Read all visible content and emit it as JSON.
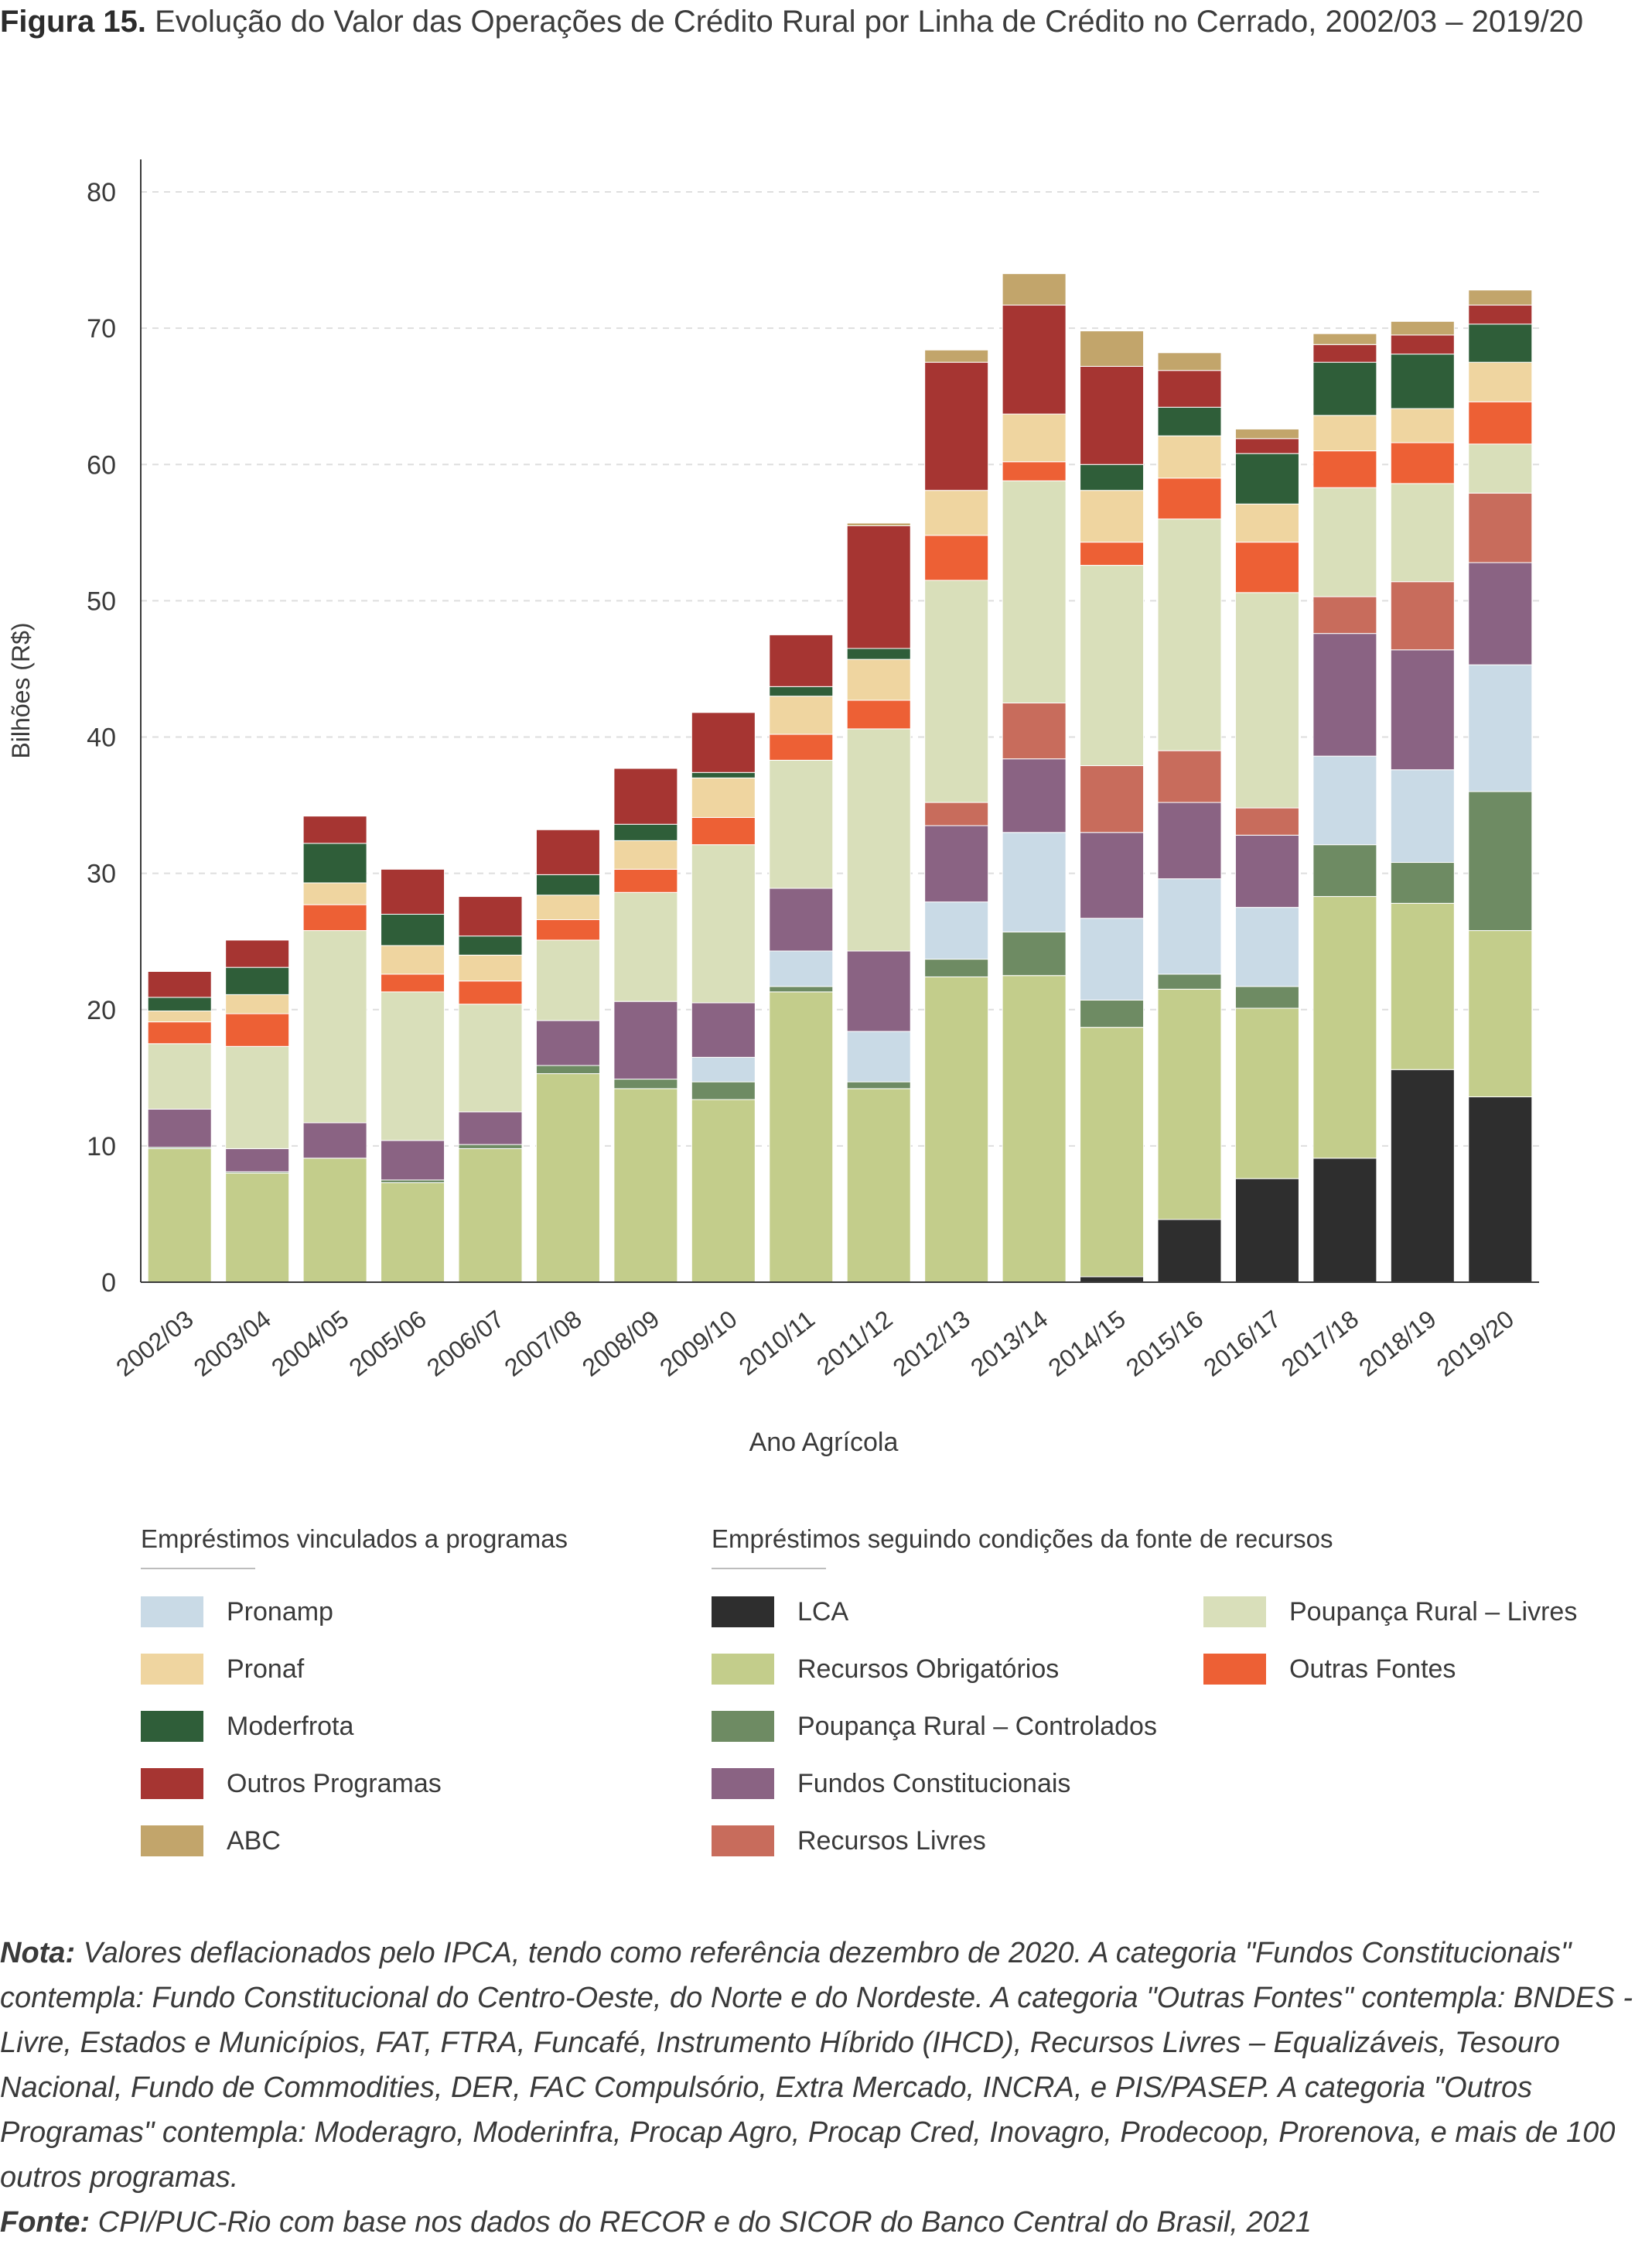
{
  "title": {
    "bold": "Figura 15.",
    "text": " Evolução do Valor das Operações de Crédito Rural por Linha de Crédito no Cerrado, 2002/03 – 2019/20"
  },
  "chart_data": {
    "type": "bar",
    "stacked": true,
    "ylabel": "Bilhões (R$)",
    "xlabel": "Ano Agrícola",
    "ylim": [
      0,
      80
    ],
    "yticks": [
      0,
      10,
      20,
      30,
      40,
      50,
      60,
      70,
      80
    ],
    "grid": "horizontal dashed",
    "categories": [
      "2002/03",
      "2003/04",
      "2004/05",
      "2005/06",
      "2006/07",
      "2007/08",
      "2008/09",
      "2009/10",
      "2010/11",
      "2011/12",
      "2012/13",
      "2013/14",
      "2014/15",
      "2015/16",
      "2016/17",
      "2017/18",
      "2018/19",
      "2019/20"
    ],
    "series": [
      {
        "name": "LCA",
        "color": "#2e2e2e",
        "values": [
          0,
          0,
          0,
          0,
          0,
          0,
          0,
          0,
          0,
          0,
          0,
          0,
          0.4,
          4.6,
          7.6,
          9.1,
          15.6,
          13.6
        ]
      },
      {
        "name": "Recursos Obrigatórios",
        "color": "#c3cd8b",
        "values": [
          9.8,
          8.0,
          9.1,
          7.3,
          9.8,
          15.3,
          14.2,
          13.4,
          21.3,
          14.2,
          22.4,
          22.5,
          18.3,
          16.9,
          12.5,
          19.2,
          12.2,
          12.2
        ]
      },
      {
        "name": "Poupança Rural – Controlados",
        "color": "#6e8b63",
        "values": [
          0.1,
          0.1,
          0,
          0.2,
          0.3,
          0.6,
          0.7,
          1.3,
          0.4,
          0.5,
          1.3,
          3.2,
          2.0,
          1.1,
          1.6,
          3.8,
          3.0,
          10.2
        ]
      },
      {
        "name": "Pronamp",
        "color": "#c9dae6",
        "values": [
          0,
          0,
          0,
          0,
          0,
          0,
          0,
          1.8,
          2.6,
          3.7,
          4.2,
          7.3,
          6.0,
          7.0,
          5.8,
          6.5,
          6.8,
          9.3
        ]
      },
      {
        "name": "Fundos Constitucionais",
        "color": "#8a6383",
        "values": [
          2.8,
          1.7,
          2.6,
          2.9,
          2.4,
          3.3,
          5.7,
          4.0,
          4.6,
          5.9,
          5.6,
          5.4,
          6.3,
          5.6,
          5.3,
          9.0,
          8.8,
          7.5
        ]
      },
      {
        "name": "Recursos Livres",
        "color": "#c86c5c",
        "values": [
          0,
          0,
          0,
          0,
          0,
          0,
          0,
          0,
          0,
          0,
          1.7,
          4.1,
          4.9,
          3.8,
          2.0,
          2.7,
          5.0,
          5.1
        ]
      },
      {
        "name": "Poupança Rural – Livres",
        "color": "#d9dfba",
        "values": [
          4.8,
          7.5,
          14.1,
          10.9,
          7.9,
          5.9,
          8.0,
          11.6,
          9.4,
          16.3,
          16.3,
          16.3,
          14.7,
          17.0,
          15.8,
          8.0,
          7.2,
          3.6
        ]
      },
      {
        "name": "Outras Fontes",
        "color": "#ed6035",
        "values": [
          1.6,
          2.4,
          1.9,
          1.3,
          1.7,
          1.5,
          1.7,
          2.0,
          1.9,
          2.1,
          3.3,
          1.4,
          1.7,
          3.0,
          3.7,
          2.7,
          3.0,
          3.1
        ]
      },
      {
        "name": "Pronaf",
        "color": "#efd5a0",
        "values": [
          0.8,
          1.4,
          1.6,
          2.1,
          1.9,
          1.8,
          2.1,
          2.9,
          2.8,
          3.0,
          3.3,
          3.5,
          3.8,
          3.1,
          2.8,
          2.6,
          2.5,
          2.9
        ]
      },
      {
        "name": "Moderfrota",
        "color": "#2f5e39",
        "values": [
          1.0,
          2.0,
          2.9,
          2.3,
          1.4,
          1.5,
          1.2,
          0.4,
          0.7,
          0.8,
          0,
          0,
          1.9,
          2.1,
          3.7,
          3.9,
          4.0,
          2.8
        ]
      },
      {
        "name": "Outros Programas",
        "color": "#a63532",
        "values": [
          1.9,
          2.0,
          2.0,
          3.3,
          2.9,
          3.3,
          4.1,
          4.4,
          3.8,
          9.0,
          9.4,
          8.0,
          7.2,
          2.7,
          1.1,
          1.3,
          1.4,
          1.4
        ]
      },
      {
        "name": "ABC",
        "color": "#c2a56b",
        "values": [
          0,
          0,
          0,
          0,
          0,
          0,
          0,
          0,
          0,
          0.2,
          0.9,
          2.3,
          2.6,
          1.3,
          0.7,
          0.8,
          1.0,
          1.1
        ]
      }
    ]
  },
  "legend": {
    "group1_title": "Empréstimos vinculados a programas",
    "group2_title": "Empréstimos seguindo condições da fonte de recursos",
    "group1": [
      {
        "label": "Pronamp",
        "color": "#c9dae6"
      },
      {
        "label": "Pronaf",
        "color": "#efd5a0"
      },
      {
        "label": "Moderfrota",
        "color": "#2f5e39"
      },
      {
        "label": "Outros Programas",
        "color": "#a63532"
      },
      {
        "label": "ABC",
        "color": "#c2a56b"
      }
    ],
    "group2_col1": [
      {
        "label": "LCA",
        "color": "#2e2e2e"
      },
      {
        "label": "Recursos Obrigatórios",
        "color": "#c3cd8b"
      },
      {
        "label": "Poupança Rural – Controlados",
        "color": "#6e8b63"
      },
      {
        "label": "Fundos Constitucionais",
        "color": "#8a6383"
      },
      {
        "label": "Recursos Livres",
        "color": "#c86c5c"
      }
    ],
    "group2_col2": [
      {
        "label": "Poupança Rural – Livres",
        "color": "#d9dfba"
      },
      {
        "label": "Outras Fontes",
        "color": "#ed6035"
      }
    ]
  },
  "notes": {
    "nota_label": "Nota:",
    "nota_text": " Valores deflacionados pelo IPCA, tendo como referência dezembro de 2020. A categoria \"Fundos Constitucionais\" contempla: Fundo Constitucional do Centro-Oeste, do Norte e do Nordeste. A categoria \"Outras Fontes\" contempla: BNDES - Livre, Estados e Municípios, FAT, FTRA, Funcafé, Instrumento Híbrido (IHCD), Recursos Livres – Equalizáveis, Tesouro Nacional, Fundo de Commodities, DER, FAC Compulsório, Extra Mercado, INCRA, e PIS/PASEP. A categoria \"Outros Programas\" contempla: Moderagro, Moderinfra, Procap Agro, Procap Cred, Inovagro, Prodecoop, Prorenova, e mais de 100 outros programas.",
    "fonte_label": "Fonte:",
    "fonte_text": " CPI/PUC-Rio com base nos dados do RECOR e do SICOR do Banco Central do Brasil, 2021"
  }
}
